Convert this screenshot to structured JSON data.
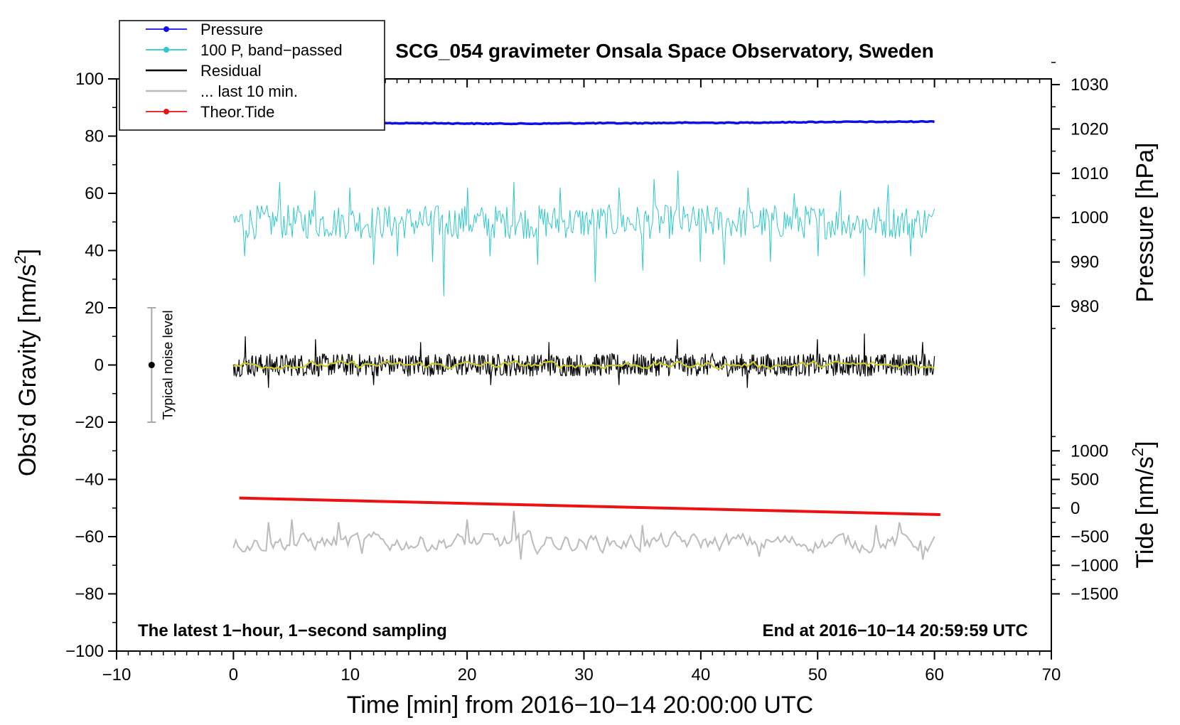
{
  "chart_data": {
    "type": "line",
    "title": "SCG_054 gravimeter Onsala Space Observatory, Sweden",
    "xlabel": "Time [min] from 2016−10−14 20:00:00 UTC",
    "ylabel": "Obs’d Gravity [nm/s",
    "ylabel_sup": "2",
    "ylabel_end": "]",
    "xlim": [
      -10,
      70
    ],
    "ylim": [
      -100,
      100
    ],
    "x_ticks": [
      -10,
      0,
      10,
      20,
      30,
      40,
      50,
      60,
      70
    ],
    "x_tick_labels": [
      "−10",
      "0",
      "10",
      "20",
      "30",
      "40",
      "50",
      "60",
      "70"
    ],
    "y_ticks": [
      -100,
      -80,
      -60,
      -40,
      -20,
      0,
      20,
      40,
      60,
      80,
      100
    ],
    "y_tick_labels": [
      "−100",
      "−80",
      "−60",
      "−40",
      "−20",
      "0",
      "20",
      "40",
      "60",
      "80",
      "100"
    ],
    "pressure_axis": {
      "label": "Pressure [hPa]",
      "ticks": [
        980,
        990,
        1000,
        1010,
        1020,
        1030
      ],
      "tick_labels": [
        "980",
        "990",
        "1000",
        "1010",
        "1020",
        "1030"
      ],
      "y_at_980": 20.5,
      "y_per_hpa": 1.55
    },
    "tide_axis": {
      "label": "Tide [nm/s",
      "label_sup": "2",
      "label_end": "]",
      "ticks": [
        -1500,
        -1000,
        -500,
        0,
        500,
        1000
      ],
      "tick_labels": [
        "−1500",
        "−1000",
        "−500",
        "0",
        "500",
        "1000"
      ],
      "y_at_0": -50,
      "y_per_unit": 0.02
    },
    "noise_bar": {
      "x": -7,
      "center": 0,
      "low": -20,
      "high": 20,
      "label": "Typical noise level"
    },
    "annotations": {
      "left": "The latest 1−hour, 1−second sampling",
      "right": "End at 2016−10−14 20:59:59 UTC"
    },
    "legend": [
      {
        "name": "Pressure",
        "color": "#1010e6",
        "marker": true
      },
      {
        "name": "100 P, band−passed",
        "color": "#2ec8cc",
        "marker": true
      },
      {
        "name": "Residual",
        "color": "#000000",
        "marker": false
      },
      {
        "name": "... last 10 min.",
        "color": "#bbbbbb",
        "marker": false
      },
      {
        "name": "Theor.Tide",
        "color": "#ee1111",
        "marker": true
      }
    ],
    "series": [
      {
        "name": "Pressure",
        "color": "#1010e6",
        "units": "hPa",
        "x_start": 0,
        "x_end": 60,
        "values": [
          1021.5,
          1021.5,
          1021.4,
          1021.3,
          1021.3,
          1021.2,
          1021.2,
          1021.3,
          1021.3,
          1021.4,
          1021.4,
          1021.5,
          1021.6,
          1021.6,
          1021.7
        ]
      },
      {
        "name": "100 P, band−passed",
        "color": "#2ec8cc",
        "units": "nm/s2",
        "x_start": 0,
        "x_end": 60,
        "mean": 50,
        "amplitude": 6,
        "spikes": [
          [
            1,
            38
          ],
          [
            4,
            64
          ],
          [
            7,
            61
          ],
          [
            10,
            62
          ],
          [
            12,
            35
          ],
          [
            14,
            38
          ],
          [
            17,
            36
          ],
          [
            18,
            24
          ],
          [
            20,
            62
          ],
          [
            22,
            38
          ],
          [
            24,
            64
          ],
          [
            26,
            35
          ],
          [
            28,
            62
          ],
          [
            31,
            29
          ],
          [
            33,
            62
          ],
          [
            35,
            33
          ],
          [
            36,
            65
          ],
          [
            38,
            68
          ],
          [
            40,
            36
          ],
          [
            42,
            35
          ],
          [
            44,
            62
          ],
          [
            46,
            36
          ],
          [
            48,
            60
          ],
          [
            50,
            38
          ],
          [
            52,
            61
          ],
          [
            54,
            31
          ],
          [
            56,
            63
          ],
          [
            58,
            38
          ]
        ]
      },
      {
        "name": "Residual",
        "color": "#000000",
        "units": "nm/s2",
        "x_start": 0,
        "x_end": 60,
        "mean": 0,
        "amplitude": 4,
        "spikes": [
          [
            1,
            10
          ],
          [
            3,
            -8
          ],
          [
            7,
            9
          ],
          [
            12,
            -7
          ],
          [
            16,
            8
          ],
          [
            22,
            -7
          ],
          [
            27,
            8
          ],
          [
            33,
            -7
          ],
          [
            38,
            9
          ],
          [
            44,
            -8
          ],
          [
            50,
            9
          ],
          [
            54,
            11
          ],
          [
            59,
            8
          ]
        ]
      },
      {
        "name": "Residual (smoothed)",
        "color": "#cccc22",
        "units": "nm/s2",
        "x_start": 0,
        "x_end": 60,
        "mean": 0,
        "amplitude": 1.2
      },
      {
        "name": "... last 10 min.",
        "color": "#bbbbbb",
        "units": "nm/s2",
        "x_start": 0,
        "x_end": 60,
        "mean": -62,
        "amplitude": 3,
        "spikes": [
          [
            3,
            -55
          ],
          [
            5,
            -54
          ],
          [
            9,
            -55
          ],
          [
            11,
            -66
          ],
          [
            20,
            -54
          ],
          [
            24,
            -51
          ],
          [
            24.5,
            -68
          ],
          [
            26,
            -66
          ],
          [
            35,
            -56
          ],
          [
            45,
            -67
          ],
          [
            55,
            -56
          ],
          [
            57,
            -55
          ],
          [
            59,
            -68
          ]
        ]
      },
      {
        "name": "Theor.Tide",
        "color": "#ee1111",
        "units": "nm/s2",
        "x_start": 0.5,
        "x_end": 60.5,
        "values": [
          175,
          -115
        ]
      }
    ]
  }
}
